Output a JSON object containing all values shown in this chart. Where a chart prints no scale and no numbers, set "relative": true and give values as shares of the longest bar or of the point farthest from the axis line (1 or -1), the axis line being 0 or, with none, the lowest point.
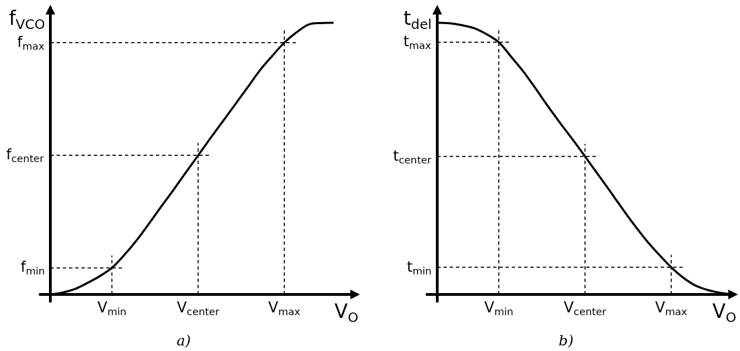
{
  "chart_data": [
    {
      "type": "line",
      "relative": true,
      "categories": [
        null,
        null,
        null,
        null,
        null,
        "V$_{min}$",
        null,
        null,
        null,
        null,
        null,
        null,
        "V$_{center}$",
        null,
        null,
        null,
        null,
        null,
        null,
        "V$_{max}$",
        null,
        null,
        null,
        null
      ],
      "values": [
        0,
        0.007,
        0.02,
        0.042,
        0.067,
        0.098,
        0.145,
        0.199,
        0.26,
        0.323,
        0.385,
        0.449,
        0.512,
        0.575,
        0.637,
        0.699,
        0.761,
        0.824,
        0.877,
        0.927,
        0.965,
        0.994,
        0.999,
        1.0
      ],
      "color": "#000000",
      "xlabel": "V$_{O}$",
      "ylabel": "f$_{VCO}$",
      "ref_lines": [
        {
          "axis": "x",
          "value": "V$_{min}$",
          "line_style": "dashed",
          "color": "#000000"
        },
        {
          "axis": "x",
          "value": "V$_{center}$",
          "line_style": "dashed",
          "color": "#000000"
        },
        {
          "axis": "x",
          "value": "V$_{max}$",
          "line_style": "dashed",
          "color": "#000000"
        },
        {
          "axis": "y",
          "value": 0.098,
          "label": "f$_{min}$",
          "line_style": "dashed",
          "color": "#000000"
        },
        {
          "axis": "y",
          "value": 0.512,
          "label": "f$_{center}$",
          "line_style": "dashed",
          "color": "#000000"
        },
        {
          "axis": "y",
          "value": 0.927,
          "label": "f$_{max}$",
          "line_style": "dashed",
          "color": "#000000"
        }
      ],
      "annotations": [
        "a)"
      ]
    },
    {
      "type": "line",
      "relative": true,
      "categories": [
        null,
        null,
        null,
        null,
        null,
        "V$_{min}$",
        null,
        null,
        null,
        null,
        null,
        null,
        "V$_{center}$",
        null,
        null,
        null,
        null,
        null,
        null,
        "V$_{max}$",
        null,
        null,
        null,
        null,
        null
      ],
      "values": [
        1.0,
        0.998,
        0.991,
        0.98,
        0.958,
        0.928,
        0.875,
        0.82,
        0.757,
        0.692,
        0.63,
        0.57,
        0.508,
        0.445,
        0.382,
        0.318,
        0.256,
        0.198,
        0.147,
        0.1,
        0.061,
        0.032,
        0.016,
        0.006,
        0
      ],
      "color": "#000000",
      "xlabel": "V$_{O}$",
      "ylabel": "t$_{del}$",
      "ref_lines": [
        {
          "axis": "x",
          "value": "V$_{min}$",
          "line_style": "dashed",
          "color": "#000000"
        },
        {
          "axis": "x",
          "value": "V$_{center}$",
          "line_style": "dashed",
          "color": "#000000"
        },
        {
          "axis": "x",
          "value": "V$_{max}$",
          "line_style": "dashed",
          "color": "#000000"
        },
        {
          "axis": "y",
          "value": 0.928,
          "label": "t$_{max}$",
          "line_style": "dashed",
          "color": "#000000"
        },
        {
          "axis": "y",
          "value": 0.508,
          "label": "t$_{center}$",
          "line_style": "dashed",
          "color": "#000000"
        },
        {
          "axis": "y",
          "value": 0.1,
          "label": "t$_{min}$",
          "line_style": "dashed",
          "color": "#000000"
        }
      ],
      "annotations": [
        "b)"
      ]
    }
  ]
}
